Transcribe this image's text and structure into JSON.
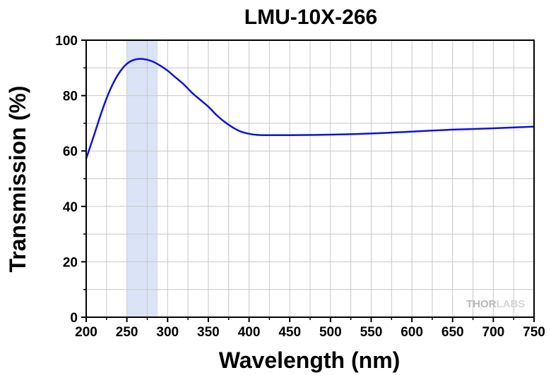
{
  "chart_data": {
    "type": "line",
    "title": "LMU-10X-266",
    "xlabel": "Wavelength (nm)",
    "ylabel": "Transmission (%)",
    "xlim": [
      200,
      750
    ],
    "ylim": [
      0,
      100
    ],
    "xticks": [
      200,
      250,
      300,
      350,
      400,
      450,
      500,
      550,
      600,
      650,
      700,
      750
    ],
    "yticks": [
      0,
      20,
      40,
      60,
      80,
      100
    ],
    "grid": true,
    "highlight_band": {
      "x": [
        250,
        288
      ],
      "color": "#dbe4f6"
    },
    "series": [
      {
        "color": "#1010e0",
        "x": [
          200,
          210,
          220,
          230,
          240,
          250,
          260,
          270,
          280,
          290,
          300,
          310,
          320,
          330,
          340,
          350,
          360,
          370,
          380,
          390,
          400,
          410,
          420,
          450,
          500,
          550,
          600,
          650,
          700,
          750
        ],
        "y": [
          57.2,
          66,
          75,
          82.5,
          88,
          91.5,
          93,
          93.2,
          92.5,
          91,
          89,
          86.5,
          84,
          81,
          78.5,
          76,
          73,
          70.5,
          68.5,
          67,
          66.2,
          65.8,
          65.7,
          65.7,
          65.9,
          66.3,
          67,
          67.7,
          68.2,
          68.8
        ]
      }
    ]
  },
  "watermark": {
    "text_thor": "THOR",
    "text_labs": "LABS",
    "thor_color": "#b8b8b8",
    "labs_color": "#d6d6d6"
  }
}
